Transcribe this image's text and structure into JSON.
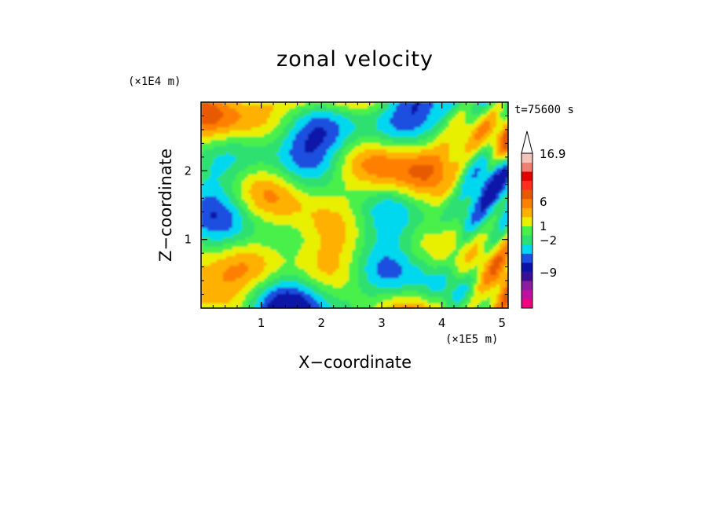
{
  "chart_data": {
    "type": "heatmap",
    "title": "zonal velocity",
    "xlabel": "X−coordinate",
    "ylabel": "Z−coordinate",
    "x_unit": "(×1E5 m)",
    "y_unit": "(×1E4 m)",
    "time_label": "t=75600 s",
    "xlim": [
      0.0,
      5.1
    ],
    "ylim": [
      0.0,
      3.0
    ],
    "x_ticks": [
      1,
      2,
      3,
      4,
      5
    ],
    "x_tick_labels": [
      "1",
      "2",
      "3",
      "4",
      "5"
    ],
    "y_ticks": [
      1,
      2
    ],
    "y_tick_labels": [
      "1",
      "2"
    ],
    "colorbar": {
      "labels": [
        "16.9",
        "6",
        "1",
        "−2",
        "−9"
      ],
      "levels": [
        16.9,
        6,
        1,
        -2,
        -9
      ],
      "colors": [
        "#f0007f",
        "#c00fa0",
        "#8a1c9e",
        "#3a0f98",
        "#0a12a8",
        "#1d4fe0",
        "#00d8f0",
        "#2ee070",
        "#48f048",
        "#e8f000",
        "#ffb000",
        "#ff8000",
        "#e85a00",
        "#ff3020",
        "#e30000",
        "#f08070",
        "#f4c4bc"
      ],
      "extend": "max"
    }
  }
}
